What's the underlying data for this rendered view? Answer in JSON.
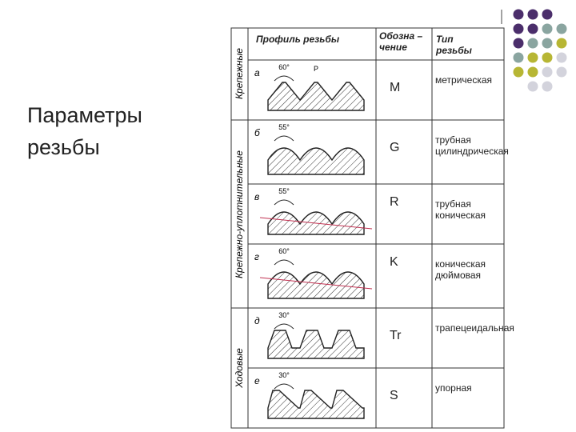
{
  "title": "Параметры резьбы",
  "table": {
    "headers": [
      "Профиль резьбы",
      "Обозна – чение",
      "Тип резьбы"
    ],
    "groups": [
      "Крепежные",
      "Крепежно-уплотнительные",
      "Ходовые"
    ],
    "rows": [
      {
        "letter": "а",
        "angle": "60°",
        "pitch": "P",
        "designation": "M",
        "type": "метрическая"
      },
      {
        "letter": "б",
        "angle": "55°",
        "designation": "G",
        "type": "трубная цилиндрическая"
      },
      {
        "letter": "в",
        "angle": "55°",
        "designation": "R",
        "type": "трубная коническая"
      },
      {
        "letter": "г",
        "angle": "60°",
        "designation": "K",
        "type": "коническая дюймовая"
      },
      {
        "letter": "д",
        "angle": "30°",
        "designation": "Tr",
        "type": "трапецеидальная"
      },
      {
        "letter": "е",
        "angle": "30°",
        "designation": "S",
        "type": "упорная"
      }
    ]
  }
}
